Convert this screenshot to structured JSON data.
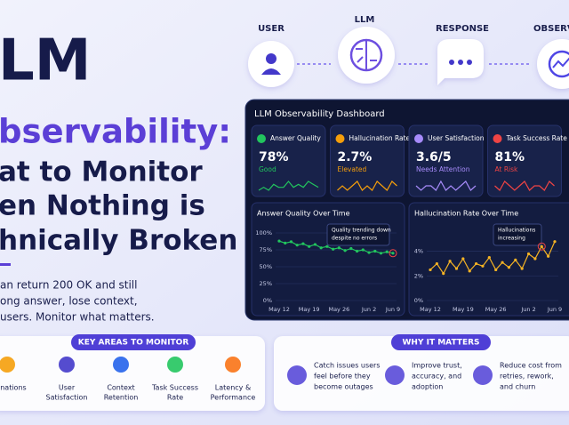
{
  "flow": {
    "steps": [
      "USER",
      "LLM",
      "RESPONSE",
      "OBSERVA"
    ]
  },
  "hero": {
    "title_lines": [
      "LM",
      "bservability:",
      "at to Monitor",
      "en Nothing is",
      "hnically Broken"
    ],
    "body_lines": [
      "an return 200 OK and still",
      "ong answer, lose context,",
      "users. Monitor what matters."
    ]
  },
  "dashboard": {
    "title": "LLM Observability Dashboard",
    "kpis": [
      {
        "label": "Answer Quality",
        "value": "78%",
        "status": "Good",
        "color": "#22c55e",
        "spark": [
          5,
          6,
          5,
          7,
          6,
          6,
          8,
          6,
          7,
          6,
          8,
          7,
          6
        ]
      },
      {
        "label": "Hallucination Rate",
        "value": "2.7%",
        "status": "Elevated",
        "color": "#f59e0b",
        "spark": [
          5,
          6,
          5,
          6,
          7,
          5,
          6,
          5,
          7,
          6,
          5,
          7,
          6
        ]
      },
      {
        "label": "User Satisfaction",
        "value": "3.6/5",
        "status": "Needs Attention",
        "color": "#a78bfa",
        "spark": [
          6,
          5,
          6,
          6,
          5,
          7,
          5,
          6,
          5,
          6,
          7,
          5,
          6
        ]
      },
      {
        "label": "Task Success Rate",
        "value": "81%",
        "status": "At Risk",
        "color": "#ef4444",
        "spark": [
          6,
          5,
          7,
          6,
          5,
          6,
          7,
          5,
          6,
          6,
          5,
          7,
          6
        ]
      }
    ],
    "charts": [
      {
        "type": "line",
        "title": "Answer Quality Over Time",
        "annotation": [
          "Quality trending down",
          "despite no errors"
        ],
        "color": "#22c55e",
        "categories": [
          "May 12",
          null,
          null,
          null,
          null,
          "May 19",
          null,
          null,
          null,
          null,
          "May 26",
          null,
          null,
          null,
          null,
          "Jun 2",
          null,
          null,
          null,
          "Jun 9"
        ],
        "values": [
          88,
          85,
          87,
          82,
          84,
          80,
          83,
          78,
          80,
          76,
          78,
          74,
          77,
          73,
          75,
          71,
          73,
          70,
          72,
          70
        ],
        "ylim": [
          0,
          100
        ],
        "yticks": [
          {
            "value": 0,
            "label": "0%"
          },
          {
            "value": 25,
            "label": "25%"
          },
          {
            "value": 50,
            "label": "50%"
          },
          {
            "value": 75,
            "label": "75%"
          },
          {
            "value": 100,
            "label": "100%"
          }
        ]
      },
      {
        "type": "line",
        "title": "Hallucination Rate Over Time",
        "annotation": [
          "Hallucinations",
          "increasing"
        ],
        "color": "#f5b324",
        "categories": [
          "May 12",
          null,
          null,
          null,
          null,
          "May 19",
          null,
          null,
          null,
          null,
          "May 26",
          null,
          null,
          null,
          null,
          "Jun 2",
          null,
          null,
          null,
          "Jun 9"
        ],
        "values": [
          2.5,
          3.0,
          2.2,
          3.2,
          2.6,
          3.4,
          2.4,
          3.0,
          2.8,
          3.5,
          2.5,
          3.1,
          2.7,
          3.3,
          2.6,
          3.8,
          3.4,
          4.4,
          3.6,
          4.8
        ],
        "ylim": [
          0,
          5.5
        ],
        "yticks": [
          {
            "value": 0,
            "label": "0%"
          },
          {
            "value": 2,
            "label": "2%"
          },
          {
            "value": 4,
            "label": "4%"
          }
        ]
      }
    ]
  },
  "key_areas": {
    "title": "KEY AREAS TO MONITOR",
    "items": [
      {
        "lines": [
          "lucinations"
        ]
      },
      {
        "lines": [
          "User",
          "Satisfaction"
        ]
      },
      {
        "lines": [
          "Context",
          "Retention"
        ]
      },
      {
        "lines": [
          "Task Success",
          "Rate"
        ]
      },
      {
        "lines": [
          "Latency &",
          "Performance"
        ]
      }
    ]
  },
  "why": {
    "title": "WHY IT MATTERS",
    "items": [
      {
        "lines": [
          "Catch issues users",
          "feel before they",
          "become outages"
        ]
      },
      {
        "lines": [
          "Improve trust,",
          "accuracy, and",
          "adoption"
        ]
      },
      {
        "lines": [
          "Reduce cost from",
          "retries, rework,",
          "and churn"
        ]
      }
    ]
  }
}
